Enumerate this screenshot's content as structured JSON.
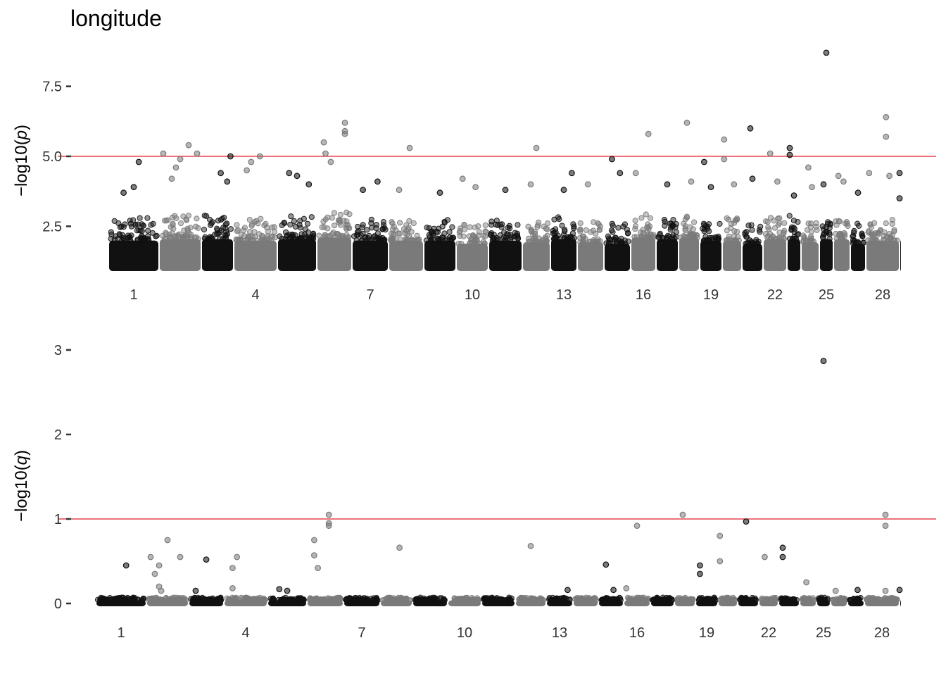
{
  "title": "longitude",
  "colors": {
    "dark": "#111111",
    "light": "#7a7a7a",
    "threshold": "#e0202a",
    "tick_text": "#333333"
  },
  "chart_data": [
    {
      "type": "scatter",
      "subtype": "manhattan",
      "ylabel": "−log10(p)",
      "ylabel_parts": [
        "−log10(",
        "p",
        ")"
      ],
      "ylim": [
        0.75,
        9.0
      ],
      "yticks": [
        {
          "value": 2.5,
          "label": "2.5"
        },
        {
          "value": 5.0,
          "label": "5.0"
        },
        {
          "value": 7.5,
          "label": "7.5"
        }
      ],
      "threshold": 5.0,
      "grid": false,
      "chromosomes": [
        1,
        2,
        3,
        4,
        5,
        6,
        7,
        8,
        9,
        10,
        11,
        12,
        13,
        14,
        15,
        16,
        17,
        18,
        19,
        20,
        21,
        22,
        23,
        24,
        25,
        26,
        27,
        28,
        29
      ],
      "x_tick_labels": [
        "1",
        "4",
        "7",
        "10",
        "13",
        "16",
        "19",
        "22",
        "25",
        "28"
      ],
      "column_base_top": [
        2.8,
        2.9,
        2.9,
        2.8,
        2.9,
        3.0,
        2.8,
        2.8,
        2.8,
        2.6,
        2.8,
        2.7,
        2.9,
        2.7,
        2.6,
        3.0,
        2.9,
        3.0,
        2.8,
        2.8,
        2.6,
        2.9,
        2.9,
        2.7,
        2.9,
        2.9,
        2.6,
        2.8,
        2.8
      ],
      "points": [
        {
          "chr": 1,
          "pos": 0.3,
          "y": 3.7
        },
        {
          "chr": 1,
          "pos": 0.6,
          "y": 4.8
        },
        {
          "chr": 1,
          "pos": 0.5,
          "y": 3.9
        },
        {
          "chr": 2,
          "pos": 0.1,
          "y": 5.1
        },
        {
          "chr": 2,
          "pos": 0.4,
          "y": 4.6
        },
        {
          "chr": 2,
          "pos": 0.5,
          "y": 4.9
        },
        {
          "chr": 2,
          "pos": 0.7,
          "y": 5.4
        },
        {
          "chr": 2,
          "pos": 0.9,
          "y": 5.1
        },
        {
          "chr": 2,
          "pos": 0.3,
          "y": 4.2
        },
        {
          "chr": 3,
          "pos": 0.6,
          "y": 4.4
        },
        {
          "chr": 3,
          "pos": 0.9,
          "y": 5.0
        },
        {
          "chr": 3,
          "pos": 0.8,
          "y": 4.1
        },
        {
          "chr": 4,
          "pos": 0.4,
          "y": 4.8
        },
        {
          "chr": 4,
          "pos": 0.6,
          "y": 5.0
        },
        {
          "chr": 4,
          "pos": 0.3,
          "y": 4.5
        },
        {
          "chr": 5,
          "pos": 0.3,
          "y": 4.4
        },
        {
          "chr": 5,
          "pos": 0.8,
          "y": 4.0
        },
        {
          "chr": 5,
          "pos": 0.5,
          "y": 4.3
        },
        {
          "chr": 6,
          "pos": 0.2,
          "y": 5.5
        },
        {
          "chr": 6,
          "pos": 0.25,
          "y": 5.1
        },
        {
          "chr": 6,
          "pos": 0.4,
          "y": 4.8
        },
        {
          "chr": 6,
          "pos": 0.8,
          "y": 6.2
        },
        {
          "chr": 6,
          "pos": 0.8,
          "y": 5.9
        },
        {
          "chr": 6,
          "pos": 0.8,
          "y": 5.8
        },
        {
          "chr": 7,
          "pos": 0.7,
          "y": 4.1
        },
        {
          "chr": 7,
          "pos": 0.3,
          "y": 3.8
        },
        {
          "chr": 8,
          "pos": 0.6,
          "y": 5.3
        },
        {
          "chr": 8,
          "pos": 0.3,
          "y": 3.8
        },
        {
          "chr": 9,
          "pos": 0.5,
          "y": 3.7
        },
        {
          "chr": 10,
          "pos": 0.2,
          "y": 4.2
        },
        {
          "chr": 10,
          "pos": 0.6,
          "y": 3.9
        },
        {
          "chr": 11,
          "pos": 0.5,
          "y": 3.8
        },
        {
          "chr": 12,
          "pos": 0.5,
          "y": 5.3
        },
        {
          "chr": 12,
          "pos": 0.3,
          "y": 4.0
        },
        {
          "chr": 13,
          "pos": 0.8,
          "y": 4.4
        },
        {
          "chr": 13,
          "pos": 0.5,
          "y": 3.8
        },
        {
          "chr": 14,
          "pos": 0.4,
          "y": 4.0
        },
        {
          "chr": 15,
          "pos": 0.3,
          "y": 4.9
        },
        {
          "chr": 15,
          "pos": 0.6,
          "y": 4.4
        },
        {
          "chr": 16,
          "pos": 0.2,
          "y": 4.4
        },
        {
          "chr": 16,
          "pos": 0.7,
          "y": 5.8
        },
        {
          "chr": 17,
          "pos": 0.5,
          "y": 4.0
        },
        {
          "chr": 18,
          "pos": 0.4,
          "y": 6.2
        },
        {
          "chr": 18,
          "pos": 0.6,
          "y": 4.1
        },
        {
          "chr": 19,
          "pos": 0.2,
          "y": 4.8
        },
        {
          "chr": 19,
          "pos": 0.5,
          "y": 3.9
        },
        {
          "chr": 20,
          "pos": 0.1,
          "y": 5.6
        },
        {
          "chr": 20,
          "pos": 0.1,
          "y": 4.9
        },
        {
          "chr": 20,
          "pos": 0.6,
          "y": 4.0
        },
        {
          "chr": 21,
          "pos": 0.4,
          "y": 6.0
        },
        {
          "chr": 21,
          "pos": 0.5,
          "y": 4.2
        },
        {
          "chr": 22,
          "pos": 0.3,
          "y": 5.1
        },
        {
          "chr": 22,
          "pos": 0.6,
          "y": 4.1
        },
        {
          "chr": 23,
          "pos": 0.2,
          "y": 5.3
        },
        {
          "chr": 23,
          "pos": 0.2,
          "y": 5.05
        },
        {
          "chr": 23,
          "pos": 0.5,
          "y": 3.6
        },
        {
          "chr": 24,
          "pos": 0.4,
          "y": 4.6
        },
        {
          "chr": 24,
          "pos": 0.6,
          "y": 3.9
        },
        {
          "chr": 25,
          "pos": 0.5,
          "y": 8.7
        },
        {
          "chr": 25,
          "pos": 0.3,
          "y": 4.0
        },
        {
          "chr": 26,
          "pos": 0.3,
          "y": 4.3
        },
        {
          "chr": 26,
          "pos": 0.6,
          "y": 4.1
        },
        {
          "chr": 27,
          "pos": 0.5,
          "y": 3.7
        },
        {
          "chr": 28,
          "pos": 0.1,
          "y": 4.4
        },
        {
          "chr": 28,
          "pos": 0.6,
          "y": 6.4
        },
        {
          "chr": 28,
          "pos": 0.6,
          "y": 5.7
        },
        {
          "chr": 28,
          "pos": 0.7,
          "y": 4.3
        },
        {
          "chr": 29,
          "pos": 0.3,
          "y": 4.4
        },
        {
          "chr": 29,
          "pos": 0.4,
          "y": 3.5
        }
      ]
    },
    {
      "type": "scatter",
      "subtype": "manhattan",
      "ylabel": "−log10(q)",
      "ylabel_parts": [
        "−log10(",
        "q",
        ")"
      ],
      "ylim": [
        0,
        3.1
      ],
      "yticks": [
        {
          "value": 0,
          "label": "0"
        },
        {
          "value": 1,
          "label": "1"
        },
        {
          "value": 2,
          "label": "2"
        },
        {
          "value": 3,
          "label": "3"
        }
      ],
      "threshold": 1.0,
      "grid": false,
      "chromosomes": [
        1,
        2,
        3,
        4,
        5,
        6,
        7,
        8,
        9,
        10,
        11,
        12,
        13,
        14,
        15,
        16,
        17,
        18,
        19,
        20,
        21,
        22,
        23,
        24,
        25,
        26,
        27,
        28,
        29
      ],
      "x_tick_labels": [
        "1",
        "4",
        "7",
        "10",
        "13",
        "16",
        "19",
        "22",
        "25",
        "28"
      ],
      "column_base_top": [
        0.07,
        0.07,
        0.07,
        0.07,
        0.07,
        0.07,
        0.07,
        0.07,
        0.07,
        0.07,
        0.07,
        0.07,
        0.07,
        0.07,
        0.07,
        0.07,
        0.07,
        0.07,
        0.07,
        0.07,
        0.07,
        0.07,
        0.07,
        0.07,
        0.07,
        0.07,
        0.07,
        0.07,
        0.07
      ],
      "points": [
        {
          "chr": 1,
          "pos": 0.6,
          "y": 0.45
        },
        {
          "chr": 2,
          "pos": 0.1,
          "y": 0.55
        },
        {
          "chr": 2,
          "pos": 0.5,
          "y": 0.75
        },
        {
          "chr": 2,
          "pos": 0.3,
          "y": 0.45
        },
        {
          "chr": 2,
          "pos": 0.8,
          "y": 0.55
        },
        {
          "chr": 2,
          "pos": 0.2,
          "y": 0.35
        },
        {
          "chr": 2,
          "pos": 0.3,
          "y": 0.2
        },
        {
          "chr": 2,
          "pos": 0.35,
          "y": 0.15
        },
        {
          "chr": 3,
          "pos": 0.5,
          "y": 0.52
        },
        {
          "chr": 3,
          "pos": 0.2,
          "y": 0.15
        },
        {
          "chr": 4,
          "pos": 0.3,
          "y": 0.55
        },
        {
          "chr": 4,
          "pos": 0.2,
          "y": 0.42
        },
        {
          "chr": 4,
          "pos": 0.2,
          "y": 0.18
        },
        {
          "chr": 5,
          "pos": 0.3,
          "y": 0.17
        },
        {
          "chr": 5,
          "pos": 0.5,
          "y": 0.15
        },
        {
          "chr": 6,
          "pos": 0.2,
          "y": 0.75
        },
        {
          "chr": 6,
          "pos": 0.2,
          "y": 0.57
        },
        {
          "chr": 6,
          "pos": 0.3,
          "y": 0.42
        },
        {
          "chr": 6,
          "pos": 0.6,
          "y": 1.05
        },
        {
          "chr": 6,
          "pos": 0.6,
          "y": 0.95
        },
        {
          "chr": 6,
          "pos": 0.6,
          "y": 0.92
        },
        {
          "chr": 8,
          "pos": 0.6,
          "y": 0.66
        },
        {
          "chr": 12,
          "pos": 0.5,
          "y": 0.68
        },
        {
          "chr": 13,
          "pos": 0.8,
          "y": 0.16
        },
        {
          "chr": 15,
          "pos": 0.3,
          "y": 0.46
        },
        {
          "chr": 15,
          "pos": 0.6,
          "y": 0.16
        },
        {
          "chr": 16,
          "pos": 0.1,
          "y": 0.18
        },
        {
          "chr": 16,
          "pos": 0.5,
          "y": 0.92
        },
        {
          "chr": 18,
          "pos": 0.4,
          "y": 1.05
        },
        {
          "chr": 19,
          "pos": 0.2,
          "y": 0.45
        },
        {
          "chr": 19,
          "pos": 0.2,
          "y": 0.35
        },
        {
          "chr": 20,
          "pos": 0.1,
          "y": 0.8
        },
        {
          "chr": 20,
          "pos": 0.1,
          "y": 0.5
        },
        {
          "chr": 21,
          "pos": 0.4,
          "y": 0.97
        },
        {
          "chr": 22,
          "pos": 0.3,
          "y": 0.55
        },
        {
          "chr": 23,
          "pos": 0.2,
          "y": 0.66
        },
        {
          "chr": 23,
          "pos": 0.2,
          "y": 0.55
        },
        {
          "chr": 24,
          "pos": 0.4,
          "y": 0.25
        },
        {
          "chr": 25,
          "pos": 0.5,
          "y": 2.87
        },
        {
          "chr": 26,
          "pos": 0.3,
          "y": 0.15
        },
        {
          "chr": 27,
          "pos": 0.6,
          "y": 0.16
        },
        {
          "chr": 28,
          "pos": 0.6,
          "y": 1.05
        },
        {
          "chr": 28,
          "pos": 0.6,
          "y": 0.92
        },
        {
          "chr": 28,
          "pos": 0.6,
          "y": 0.15
        },
        {
          "chr": 29,
          "pos": 0.4,
          "y": 0.16
        }
      ]
    }
  ]
}
